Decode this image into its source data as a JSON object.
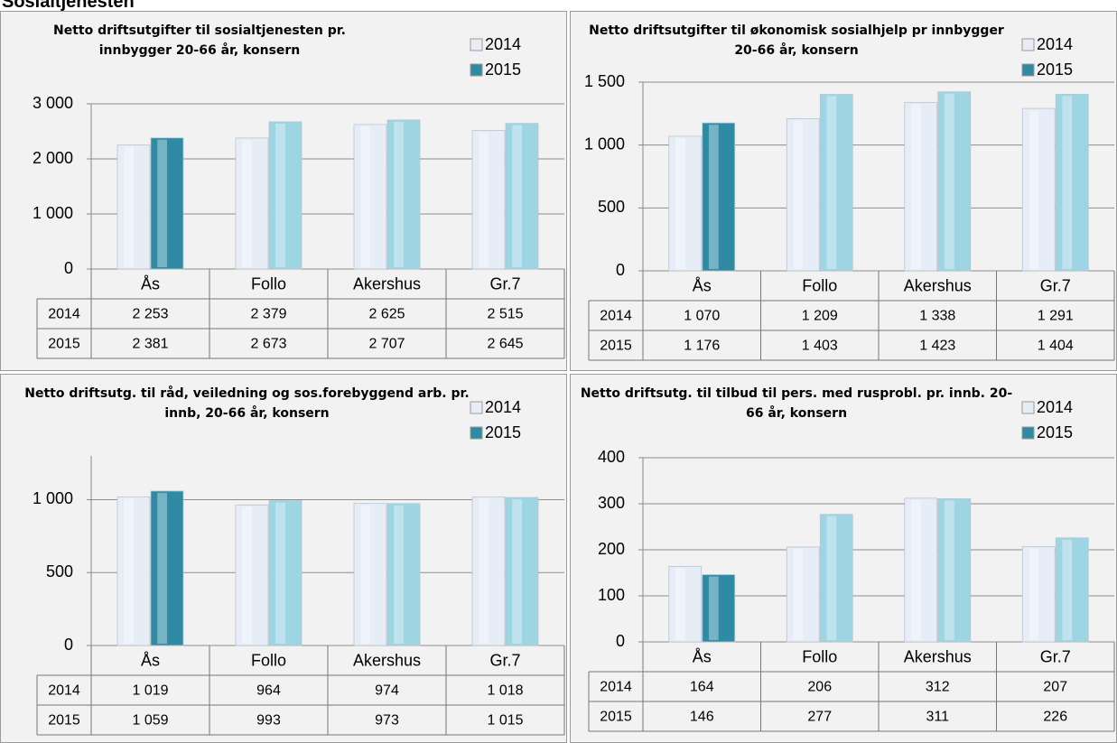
{
  "title": "Sosialtjenesten",
  "chart_data": [
    {
      "type": "bar",
      "title": "Netto driftsutgifter til sosialtjenesten pr. innbygger 20-66 år, konsern",
      "categories": [
        "Ås",
        "Follo",
        "Akershus",
        "Gr.7"
      ],
      "series": [
        {
          "name": "2014",
          "color": "#e6edf7",
          "values": [
            2253,
            2379,
            2625,
            2515
          ],
          "value_labels": [
            "2 253",
            "2 379",
            "2 625",
            "2 515"
          ]
        },
        {
          "name": "2015",
          "color": "#9dd5e2",
          "colors": [
            "#2f8ba3",
            "#9dd5e2",
            "#9dd5e2",
            "#9dd5e2"
          ],
          "values": [
            2381,
            2673,
            2707,
            2645
          ],
          "value_labels": [
            "2 381",
            "2 673",
            "2 707",
            "2 645"
          ]
        }
      ],
      "ylim": [
        0,
        3000
      ],
      "yticks": [
        0,
        {
          "value": 1000,
          "label": "1 000"
        },
        {
          "value": 2000,
          "label": "2 000"
        },
        {
          "value": 3000,
          "label": "3 000"
        }
      ],
      "grid": true,
      "legend": "upper right"
    },
    {
      "type": "bar",
      "title": "Netto driftsutgifter til økonomisk sosialhjelp pr innbygger 20-66 år, konsern",
      "categories": [
        "Ås",
        "Follo",
        "Akershus",
        "Gr.7"
      ],
      "series": [
        {
          "name": "2014",
          "color": "#e6edf7",
          "values": [
            1070,
            1209,
            1338,
            1291
          ],
          "value_labels": [
            "1 070",
            "1 209",
            "1 338",
            "1 291"
          ]
        },
        {
          "name": "2015",
          "color": "#9dd5e2",
          "colors": [
            "#2f8ba3",
            "#9dd5e2",
            "#9dd5e2",
            "#9dd5e2"
          ],
          "values": [
            1176,
            1403,
            1423,
            1404
          ],
          "value_labels": [
            "1 176",
            "1 403",
            "1 423",
            "1 404"
          ]
        }
      ],
      "ylim": [
        0,
        1500
      ],
      "yticks": [
        0,
        500,
        {
          "value": 1000,
          "label": "1 000"
        },
        {
          "value": 1500,
          "label": "1 500"
        }
      ],
      "grid": true,
      "legend": "upper right"
    },
    {
      "type": "bar",
      "title": "Netto driftsutg. til råd, veiledning og sos.forebyggend arb. pr. innb, 20-66 år, konsern",
      "categories": [
        "Ås",
        "Follo",
        "Akershus",
        "Gr.7"
      ],
      "series": [
        {
          "name": "2014",
          "color": "#e6edf7",
          "values": [
            1019,
            964,
            974,
            1018
          ],
          "value_labels": [
            "1 019",
            "964",
            "974",
            "1 018"
          ]
        },
        {
          "name": "2015",
          "color": "#9dd5e2",
          "colors": [
            "#2f8ba3",
            "#9dd5e2",
            "#9dd5e2",
            "#9dd5e2"
          ],
          "values": [
            1059,
            993,
            973,
            1015
          ],
          "value_labels": [
            "1 059",
            "993",
            "973",
            "1 015"
          ]
        }
      ],
      "ylim": [
        0,
        1300
      ],
      "yticks": [
        0,
        500,
        {
          "value": 1000,
          "label": "1 000"
        }
      ],
      "grid": true,
      "legend": "upper right"
    },
    {
      "type": "bar",
      "title": "Netto driftsutg. til tilbud til pers. med rusprobl. pr. innb. 20-66 år, konsern",
      "categories": [
        "Ås",
        "Follo",
        "Akershus",
        "Gr.7"
      ],
      "series": [
        {
          "name": "2014",
          "color": "#e6edf7",
          "values": [
            164,
            206,
            312,
            207
          ]
        },
        {
          "name": "2015",
          "color": "#9dd5e2",
          "colors": [
            "#2f8ba3",
            "#9dd5e2",
            "#9dd5e2",
            "#9dd5e2"
          ],
          "values": [
            146,
            277,
            311,
            226
          ]
        }
      ],
      "ylim": [
        0,
        400
      ],
      "yticks": [
        0,
        100,
        200,
        300,
        400
      ],
      "grid": true,
      "legend": "upper right"
    }
  ]
}
